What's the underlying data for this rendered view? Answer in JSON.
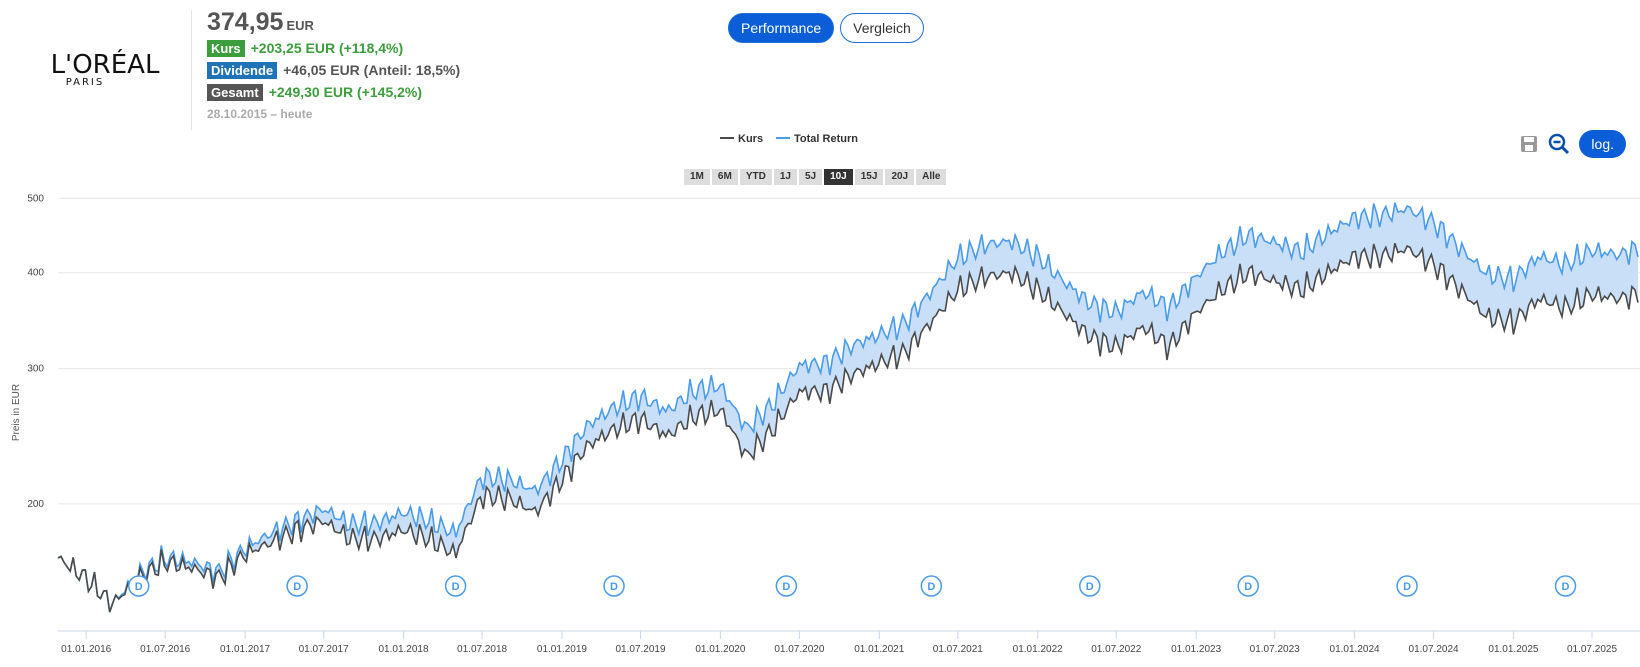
{
  "logo": {
    "brand": "L'ORÉAL",
    "sub": "PARIS"
  },
  "summary": {
    "price": "374,95",
    "currency": "EUR",
    "kurs_label": "Kurs",
    "kurs_value": "+203,25 EUR (+118,4%)",
    "dividende_label": "Dividende",
    "dividende_value": "+46,05 EUR (Anteil: 18,5%)",
    "gesamt_label": "Gesamt",
    "gesamt_value": "+249,30 EUR (+145,2%)",
    "date_range": "28.10.2015 – heute"
  },
  "mode_buttons": {
    "performance": "Performance",
    "vergleich": "Vergleich"
  },
  "tools": {
    "log_label": "log.",
    "save_icon": "save-icon",
    "zoom_out_icon": "zoom-out-icon"
  },
  "ranges": [
    "1M",
    "6M",
    "YTD",
    "1J",
    "5J",
    "10J",
    "15J",
    "20J",
    "Alle"
  ],
  "active_range": "10J",
  "colors": {
    "kurs": "#4a4a4a",
    "total_return": "#4a9be8",
    "band": "#c8dff7",
    "accent": "#0b5ed7"
  },
  "chart_data": {
    "type": "line",
    "y_scale": "log",
    "ylabel": "Preis in EUR",
    "ylim": [
      137,
      505
    ],
    "y_ticks": [
      200,
      300,
      400,
      500
    ],
    "x_ticks": [
      "01.01.2016",
      "01.07.2016",
      "01.01.2017",
      "01.07.2017",
      "01.01.2018",
      "01.07.2018",
      "01.01.2019",
      "01.07.2019",
      "01.01.2020",
      "01.07.2020",
      "01.01.2021",
      "01.07.2021",
      "01.01.2022",
      "01.07.2022",
      "01.01.2023",
      "01.07.2023",
      "01.01.2024",
      "01.07.2024",
      "01.01.2025",
      "01.07.2025"
    ],
    "legend": {
      "position": "top-center",
      "entries": [
        "Kurs",
        "Total Return"
      ]
    },
    "grid": true,
    "x": [
      "28.10.2015",
      "01.01.2016",
      "01.03.2016",
      "01.05.2016",
      "01.07.2016",
      "01.09.2016",
      "01.11.2016",
      "01.01.2017",
      "01.03.2017",
      "01.05.2017",
      "01.07.2017",
      "01.09.2017",
      "01.11.2017",
      "01.01.2018",
      "01.03.2018",
      "01.05.2018",
      "01.07.2018",
      "01.09.2018",
      "01.11.2018",
      "01.01.2019",
      "01.03.2019",
      "01.05.2019",
      "01.07.2019",
      "01.09.2019",
      "01.11.2019",
      "01.01.2020",
      "01.03.2020",
      "01.05.2020",
      "01.07.2020",
      "01.09.2020",
      "01.11.2020",
      "01.01.2021",
      "01.03.2021",
      "01.05.2021",
      "01.07.2021",
      "01.09.2021",
      "01.11.2021",
      "01.01.2022",
      "01.03.2022",
      "01.05.2022",
      "01.07.2022",
      "01.09.2022",
      "01.11.2022",
      "01.01.2023",
      "01.03.2023",
      "01.05.2023",
      "01.07.2023",
      "01.09.2023",
      "01.11.2023",
      "01.01.2024",
      "01.03.2024",
      "01.05.2024",
      "01.07.2024",
      "01.09.2024",
      "01.11.2024",
      "01.01.2025",
      "01.03.2025",
      "01.05.2025",
      "01.07.2025",
      "01.09.2025",
      "15.10.2025"
    ],
    "series": [
      {
        "name": "Kurs",
        "values": [
          170,
          160,
          148,
          160,
          168,
          165,
          160,
          172,
          178,
          185,
          190,
          180,
          180,
          185,
          180,
          172,
          205,
          203,
          195,
          215,
          238,
          250,
          258,
          245,
          260,
          265,
          230,
          250,
          280,
          280,
          295,
          305,
          315,
          345,
          380,
          395,
          400,
          380,
          355,
          330,
          320,
          340,
          320,
          355,
          380,
          400,
          390,
          380,
          400,
          420,
          420,
          430,
          410,
          380,
          350,
          345,
          370,
          360,
          375,
          370,
          374.95
        ]
      },
      {
        "name": "Total Return",
        "values": [
          170,
          160,
          148,
          162,
          170,
          168,
          163,
          175,
          183,
          190,
          197,
          188,
          189,
          195,
          190,
          183,
          217,
          215,
          208,
          228,
          253,
          267,
          276,
          264,
          281,
          285,
          250,
          270,
          303,
          305,
          322,
          332,
          344,
          378,
          418,
          435,
          440,
          420,
          390,
          365,
          355,
          378,
          360,
          395,
          425,
          448,
          438,
          426,
          450,
          472,
          475,
          485,
          465,
          430,
          398,
          392,
          420,
          410,
          428,
          422,
          430
        ]
      }
    ],
    "dividend_markers": {
      "label": "D",
      "dates": [
        "01.05.2016",
        "01.05.2017",
        "01.05.2018",
        "01.05.2019",
        "01.06.2020",
        "01.05.2021",
        "01.05.2022",
        "01.05.2023",
        "01.05.2024",
        "01.05.2025"
      ]
    }
  }
}
